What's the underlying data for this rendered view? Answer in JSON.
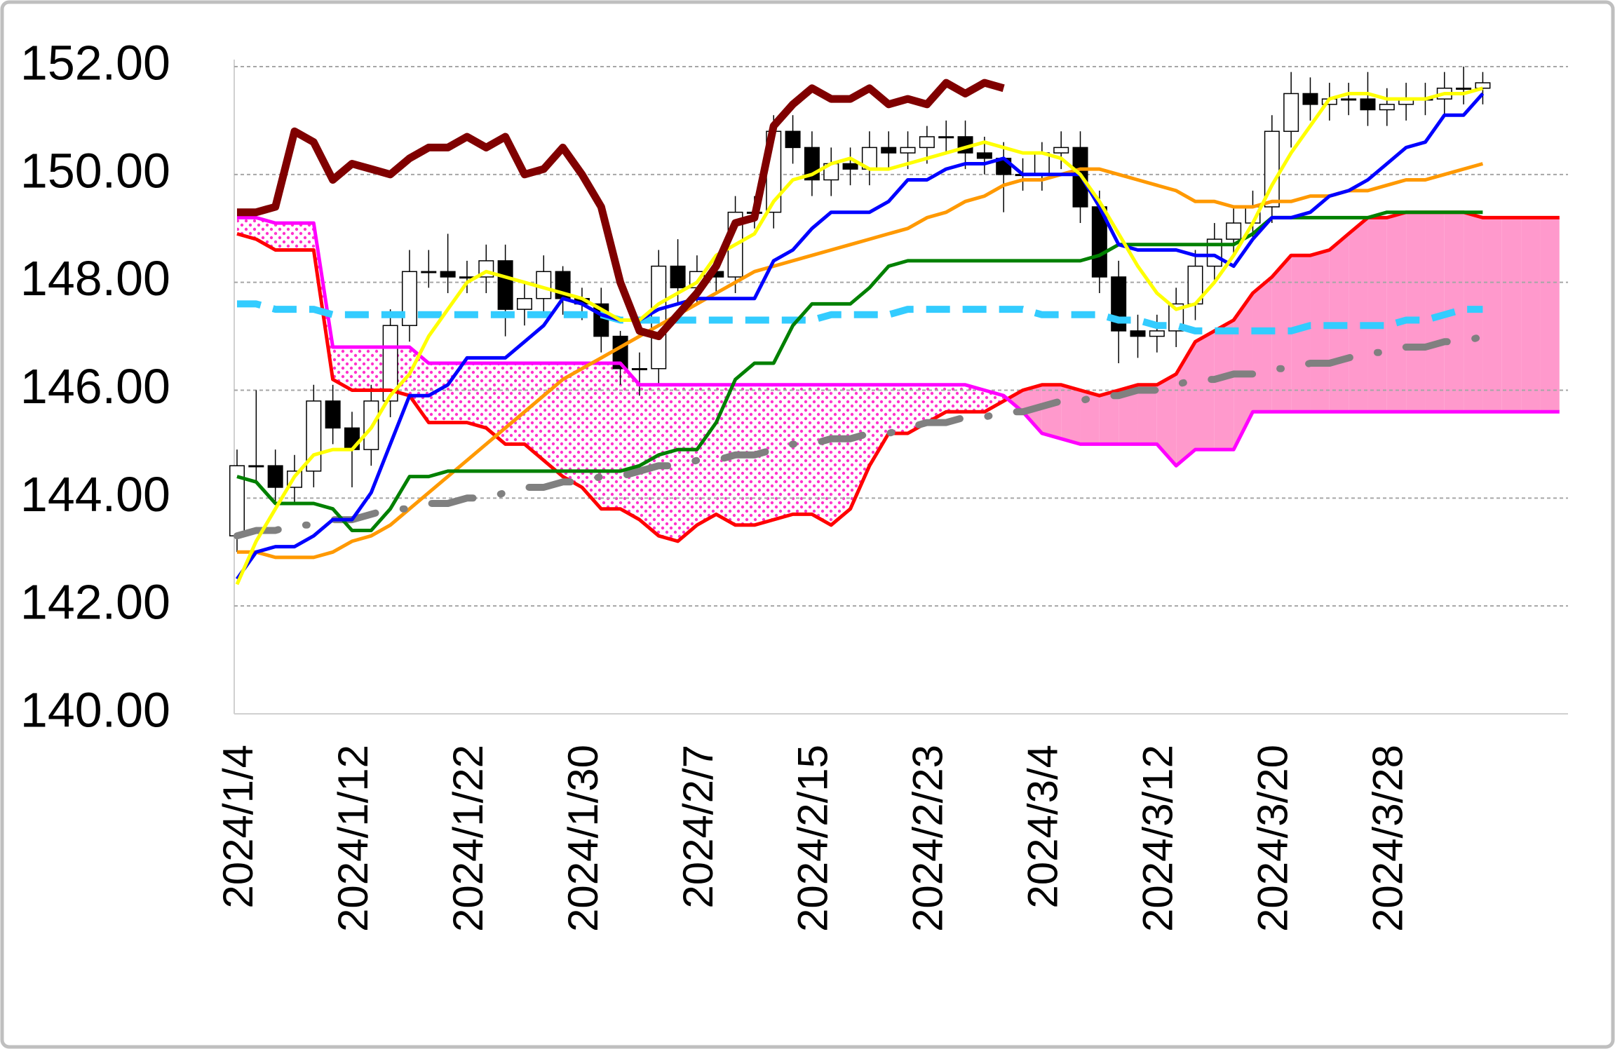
{
  "chart_data": {
    "type": "candlestick",
    "categories": [
      "2024/1/4",
      null,
      null,
      null,
      null,
      null,
      "2024/1/12",
      null,
      null,
      null,
      null,
      null,
      "2024/1/22",
      null,
      null,
      null,
      null,
      null,
      "2024/1/30",
      null,
      null,
      null,
      null,
      null,
      "2024/2/7",
      null,
      null,
      null,
      null,
      null,
      "2024/2/15",
      null,
      null,
      null,
      null,
      null,
      "2024/2/23",
      null,
      null,
      null,
      null,
      null,
      "2024/3/4",
      null,
      null,
      null,
      null,
      null,
      "2024/3/12",
      null,
      null,
      null,
      null,
      null,
      "2024/3/20",
      null,
      null,
      null,
      null,
      null,
      "2024/3/28",
      null,
      null,
      null,
      null,
      null,
      null,
      null,
      null,
      null
    ],
    "ohlc": {
      "up_color": "#ffffff",
      "down_color": "#000000",
      "edge_color": "#000000",
      "open": [
        143.3,
        144.6,
        144.6,
        144.2,
        144.5,
        145.8,
        145.3,
        144.9,
        145.8,
        147.2,
        148.2,
        148.2,
        148.1,
        148.1,
        148.4,
        147.5,
        147.7,
        148.2,
        147.7,
        147.6,
        147.0,
        146.4,
        146.4,
        148.3,
        147.9,
        148.2,
        148.1,
        149.3,
        149.3,
        150.8,
        150.5,
        149.9,
        150.2,
        150.1,
        150.5,
        150.4,
        150.5,
        150.7,
        150.7,
        150.4,
        150.3,
        150.0,
        150.0,
        150.4,
        150.5,
        149.4,
        148.1,
        147.1,
        147.0,
        147.1,
        147.6,
        148.3,
        148.8,
        149.1,
        149.4,
        150.8,
        151.5,
        151.3,
        151.4,
        151.4,
        151.2,
        151.3,
        151.4,
        151.4,
        151.6,
        151.6
      ],
      "high": [
        144.9,
        146.0,
        144.9,
        144.8,
        146.1,
        146.1,
        145.6,
        146.1,
        147.5,
        148.6,
        148.6,
        148.9,
        148.4,
        148.7,
        148.7,
        148.0,
        148.5,
        148.3,
        147.9,
        147.9,
        147.1,
        146.7,
        148.6,
        148.8,
        148.5,
        148.5,
        149.6,
        149.6,
        151.1,
        151.1,
        150.8,
        150.5,
        150.5,
        150.8,
        150.8,
        150.8,
        150.9,
        151.0,
        151.0,
        150.7,
        150.6,
        150.3,
        150.6,
        150.8,
        150.8,
        149.7,
        148.4,
        147.4,
        147.4,
        147.9,
        148.6,
        149.1,
        149.4,
        149.7,
        151.1,
        151.9,
        151.8,
        151.7,
        151.7,
        151.9,
        151.6,
        151.7,
        151.7,
        151.9,
        152.0,
        151.9
      ],
      "low": [
        143.0,
        144.3,
        143.9,
        143.9,
        144.2,
        145.0,
        144.2,
        144.6,
        145.5,
        146.9,
        147.9,
        147.8,
        147.8,
        147.8,
        147.0,
        147.2,
        147.4,
        147.4,
        147.3,
        146.7,
        146.1,
        145.9,
        146.1,
        147.6,
        147.6,
        147.8,
        147.8,
        149.0,
        149.0,
        150.2,
        149.6,
        149.6,
        149.8,
        149.8,
        150.1,
        150.1,
        150.2,
        150.4,
        150.1,
        150.0,
        149.3,
        149.7,
        149.7,
        150.1,
        149.1,
        147.8,
        146.5,
        146.6,
        146.7,
        146.8,
        147.3,
        148.0,
        148.5,
        148.8,
        149.1,
        150.5,
        151.0,
        151.0,
        151.1,
        150.9,
        150.9,
        151.0,
        151.1,
        151.1,
        151.3,
        151.3
      ],
      "close": [
        144.6,
        144.6,
        144.2,
        144.5,
        145.8,
        145.3,
        144.9,
        145.8,
        147.2,
        148.2,
        148.2,
        148.1,
        148.1,
        148.4,
        147.5,
        147.7,
        148.2,
        147.7,
        147.6,
        147.0,
        146.4,
        146.4,
        148.3,
        147.9,
        148.2,
        148.1,
        149.3,
        149.3,
        150.8,
        150.5,
        149.9,
        150.2,
        150.1,
        150.5,
        150.4,
        150.5,
        150.7,
        150.7,
        150.4,
        150.3,
        150.0,
        150.0,
        150.4,
        150.5,
        149.4,
        148.1,
        147.1,
        147.0,
        147.1,
        147.6,
        148.3,
        148.8,
        149.1,
        149.4,
        150.8,
        151.5,
        151.3,
        151.4,
        151.4,
        151.2,
        151.3,
        151.4,
        151.4,
        151.6,
        151.6,
        151.7
      ]
    },
    "cloud_fill": {
      "a_above_color": "#ff99cc",
      "b_above_pattern_color": "#ff33cc"
    },
    "series": [
      {
        "color": "#ff0000",
        "line_style": "solid",
        "cloud": "a",
        "values": [
          148.9,
          148.8,
          148.6,
          148.6,
          148.6,
          146.2,
          146.0,
          146.0,
          146.0,
          145.9,
          145.4,
          145.4,
          145.4,
          145.3,
          145.0,
          145.0,
          144.7,
          144.4,
          144.2,
          143.8,
          143.8,
          143.6,
          143.3,
          143.2,
          143.5,
          143.7,
          143.5,
          143.5,
          143.6,
          143.7,
          143.7,
          143.5,
          143.8,
          144.6,
          145.2,
          145.2,
          145.4,
          145.6,
          145.6,
          145.6,
          145.8,
          146.0,
          146.1,
          146.1,
          146.0,
          145.9,
          146.0,
          146.1,
          146.1,
          146.3,
          146.9,
          147.1,
          147.3,
          147.8,
          148.1,
          148.5,
          148.5,
          148.6,
          148.9,
          149.2,
          149.2,
          149.3,
          149.3,
          149.3,
          149.3,
          149.2,
          149.2,
          149.2,
          149.2,
          149.2
        ]
      },
      {
        "color": "#ff00ff",
        "line_style": "solid",
        "cloud": "b",
        "values": [
          149.2,
          149.2,
          149.1,
          149.1,
          149.1,
          146.8,
          146.8,
          146.8,
          146.8,
          146.8,
          146.5,
          146.5,
          146.5,
          146.5,
          146.5,
          146.5,
          146.5,
          146.5,
          146.5,
          146.5,
          146.5,
          146.1,
          146.1,
          146.1,
          146.1,
          146.1,
          146.1,
          146.1,
          146.1,
          146.1,
          146.1,
          146.1,
          146.1,
          146.1,
          146.1,
          146.1,
          146.1,
          146.1,
          146.1,
          146.0,
          145.9,
          145.6,
          145.2,
          145.1,
          145.0,
          145.0,
          145.0,
          145.0,
          145.0,
          144.6,
          144.9,
          144.9,
          144.9,
          145.6,
          145.6,
          145.6,
          145.6,
          145.6,
          145.6,
          145.6,
          145.6,
          145.6,
          145.6,
          145.6,
          145.6,
          145.6,
          145.6,
          145.6,
          145.6,
          145.6
        ]
      },
      {
        "color": "#ff9900",
        "line_style": "solid",
        "values": [
          143.0,
          143.0,
          142.9,
          142.9,
          142.9,
          143.0,
          143.2,
          143.3,
          143.5,
          143.8,
          144.1,
          144.4,
          144.7,
          145.0,
          145.3,
          145.6,
          145.9,
          146.2,
          146.4,
          146.6,
          146.8,
          147.0,
          147.2,
          147.4,
          147.6,
          147.8,
          148.0,
          148.2,
          148.3,
          148.4,
          148.5,
          148.6,
          148.7,
          148.8,
          148.9,
          149.0,
          149.2,
          149.3,
          149.5,
          149.6,
          149.8,
          149.9,
          149.9,
          150.0,
          150.1,
          150.1,
          150.0,
          149.9,
          149.8,
          149.7,
          149.5,
          149.5,
          149.4,
          149.4,
          149.5,
          149.5,
          149.6,
          149.6,
          149.7,
          149.7,
          149.8,
          149.9,
          149.9,
          150.0,
          150.1,
          150.2,
          null,
          null,
          null,
          null
        ]
      },
      {
        "color": "#33ccff",
        "line_style": "dashed",
        "values": [
          147.6,
          147.6,
          147.5,
          147.5,
          147.5,
          147.4,
          147.4,
          147.4,
          147.4,
          147.4,
          147.4,
          147.4,
          147.4,
          147.4,
          147.4,
          147.4,
          147.4,
          147.4,
          147.4,
          147.4,
          147.3,
          147.3,
          147.3,
          147.3,
          147.3,
          147.3,
          147.3,
          147.3,
          147.3,
          147.3,
          147.3,
          147.4,
          147.4,
          147.4,
          147.4,
          147.5,
          147.5,
          147.5,
          147.5,
          147.5,
          147.5,
          147.5,
          147.4,
          147.4,
          147.4,
          147.4,
          147.3,
          147.3,
          147.2,
          147.2,
          147.1,
          147.1,
          147.1,
          147.1,
          147.1,
          147.1,
          147.2,
          147.2,
          147.2,
          147.2,
          147.2,
          147.3,
          147.3,
          147.4,
          147.5,
          147.5,
          null,
          null,
          null,
          null
        ]
      },
      {
        "color": "#808080",
        "line_style": "dash-dot",
        "values": [
          143.3,
          143.4,
          143.4,
          143.5,
          143.5,
          143.6,
          143.6,
          143.7,
          143.8,
          143.8,
          143.9,
          143.9,
          144.0,
          144.0,
          144.1,
          144.2,
          144.2,
          144.3,
          144.3,
          144.4,
          144.4,
          144.5,
          144.6,
          144.6,
          144.7,
          144.7,
          144.8,
          144.8,
          144.9,
          145.0,
          145.0,
          145.1,
          145.1,
          145.2,
          145.2,
          145.3,
          145.4,
          145.4,
          145.5,
          145.5,
          145.6,
          145.6,
          145.7,
          145.8,
          145.8,
          145.9,
          145.9,
          146.0,
          146.0,
          146.1,
          146.2,
          146.2,
          146.3,
          146.3,
          146.4,
          146.4,
          146.5,
          146.5,
          146.6,
          146.7,
          146.7,
          146.8,
          146.8,
          146.9,
          146.9,
          147.0,
          null,
          null,
          null,
          null
        ]
      },
      {
        "color": "#008000",
        "line_style": "solid",
        "values": [
          144.4,
          144.3,
          143.9,
          143.9,
          143.9,
          143.8,
          143.4,
          143.4,
          143.8,
          144.4,
          144.4,
          144.5,
          144.5,
          144.5,
          144.5,
          144.5,
          144.5,
          144.5,
          144.5,
          144.5,
          144.5,
          144.6,
          144.8,
          144.9,
          144.9,
          145.4,
          146.2,
          146.5,
          146.5,
          147.2,
          147.6,
          147.6,
          147.6,
          147.9,
          148.3,
          148.4,
          148.4,
          148.4,
          148.4,
          148.4,
          148.4,
          148.4,
          148.4,
          148.4,
          148.4,
          148.5,
          148.7,
          148.7,
          148.7,
          148.7,
          148.7,
          148.7,
          148.7,
          148.9,
          149.2,
          149.2,
          149.2,
          149.2,
          149.2,
          149.2,
          149.3,
          149.3,
          149.3,
          149.3,
          149.3,
          149.3,
          null,
          null,
          null,
          null
        ]
      },
      {
        "color": "#0000ff",
        "line_style": "solid",
        "values": [
          142.5,
          143.0,
          143.1,
          143.1,
          143.3,
          143.6,
          143.6,
          144.1,
          145.0,
          145.9,
          145.9,
          146.1,
          146.6,
          146.6,
          146.6,
          146.9,
          147.2,
          147.7,
          147.6,
          147.4,
          147.3,
          147.3,
          147.5,
          147.6,
          147.7,
          147.7,
          147.7,
          147.7,
          148.4,
          148.6,
          149.0,
          149.3,
          149.3,
          149.3,
          149.5,
          149.9,
          149.9,
          150.1,
          150.2,
          150.2,
          150.3,
          150.0,
          150.0,
          150.0,
          150.0,
          149.4,
          148.7,
          148.6,
          148.6,
          148.6,
          148.5,
          148.5,
          148.3,
          148.8,
          149.2,
          149.2,
          149.3,
          149.6,
          149.7,
          149.9,
          150.2,
          150.5,
          150.6,
          151.1,
          151.1,
          151.5,
          null,
          null,
          null,
          null
        ]
      },
      {
        "color": "#ffff00",
        "line_style": "solid",
        "values": [
          142.4,
          143.2,
          143.8,
          144.4,
          144.8,
          144.9,
          144.9,
          145.3,
          145.9,
          146.3,
          147.0,
          147.5,
          148.0,
          148.2,
          148.1,
          148.0,
          147.9,
          147.8,
          147.7,
          147.5,
          147.3,
          147.3,
          147.6,
          147.8,
          148.0,
          148.5,
          148.7,
          148.9,
          149.5,
          149.9,
          150.0,
          150.2,
          150.3,
          150.1,
          150.1,
          150.2,
          150.3,
          150.4,
          150.5,
          150.6,
          150.5,
          150.4,
          150.4,
          150.3,
          150.0,
          149.5,
          148.9,
          148.3,
          147.8,
          147.5,
          147.6,
          148.0,
          148.5,
          149.1,
          149.8,
          150.4,
          150.9,
          151.4,
          151.5,
          151.5,
          151.4,
          151.4,
          151.4,
          151.5,
          151.5,
          151.6,
          null,
          null,
          null,
          null
        ]
      },
      {
        "color": "#800000",
        "line_style": "bold",
        "values": [
          149.3,
          149.3,
          149.4,
          150.8,
          150.6,
          149.9,
          150.2,
          150.1,
          150.0,
          150.3,
          150.5,
          150.5,
          150.7,
          150.5,
          150.7,
          150.0,
          150.1,
          150.5,
          150.0,
          149.4,
          148.0,
          147.1,
          147.0,
          147.4,
          147.8,
          148.3,
          149.1,
          149.2,
          150.9,
          151.3,
          151.6,
          151.4,
          151.4,
          151.6,
          151.3,
          151.4,
          151.3,
          151.7,
          151.5,
          151.7,
          151.6,
          null,
          null,
          null,
          null,
          null,
          null,
          null,
          null,
          null,
          null,
          null,
          null,
          null,
          null,
          null,
          null,
          null,
          null,
          null,
          null,
          null,
          null,
          null,
          null,
          null,
          null,
          null,
          null,
          null
        ]
      }
    ],
    "ylim": [
      140,
      152
    ],
    "yticks": [
      {
        "value": 140,
        "label": "140.00"
      },
      {
        "value": 142,
        "label": "142.00"
      },
      {
        "value": 144,
        "label": "144.00"
      },
      {
        "value": 146,
        "label": "146.00"
      },
      {
        "value": 148,
        "label": "148.00"
      },
      {
        "value": 150,
        "label": "150.00"
      },
      {
        "value": 152,
        "label": "152.00"
      }
    ],
    "grid": true
  }
}
